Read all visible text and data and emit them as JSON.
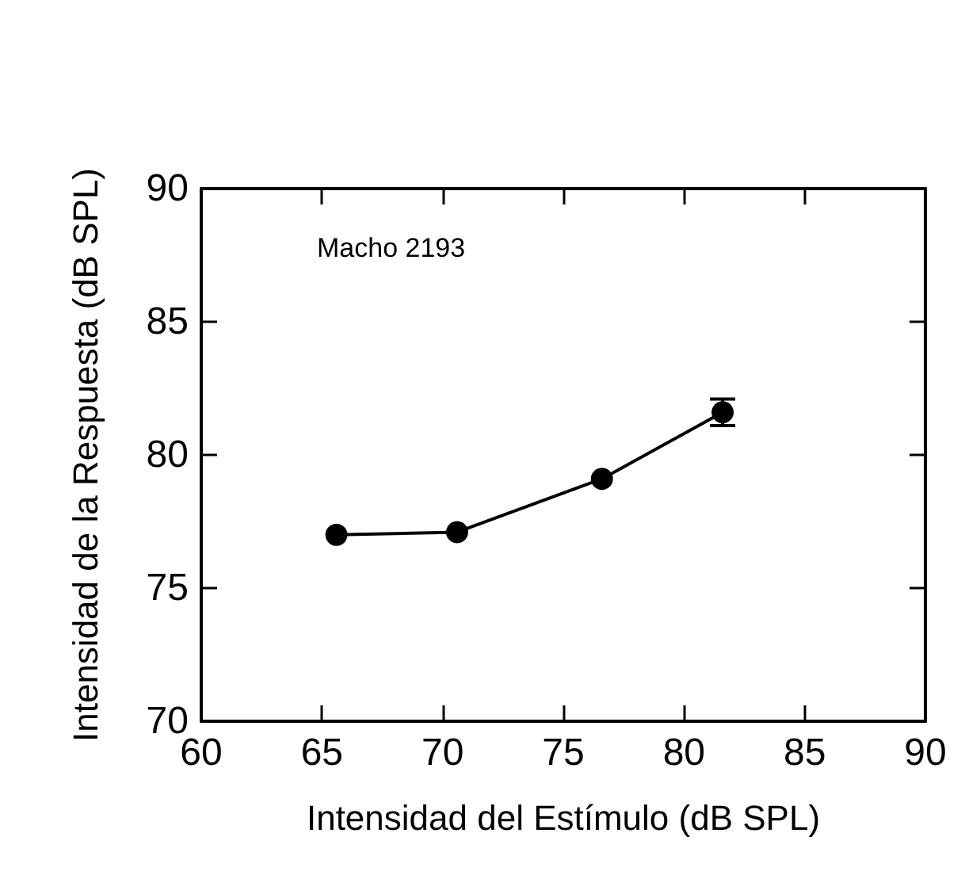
{
  "chart_data": {
    "type": "line",
    "xlabel": "Intensidad del Estímulo (dB SPL)",
    "ylabel": "Intensidad de la Respuesta (dB SPL)",
    "annotations": [
      "Macho 2193"
    ],
    "x": [
      65.6,
      70.6,
      76.6,
      81.6
    ],
    "series": [
      {
        "color": "#000000",
        "values": [
          77.0,
          77.1,
          79.1,
          81.6
        ],
        "errors": [
          null,
          null,
          null,
          0.5
        ]
      }
    ],
    "xlim": [
      60,
      90
    ],
    "xticks": [
      60,
      65,
      70,
      75,
      80,
      85,
      90
    ],
    "ylim": [
      70,
      90
    ],
    "yticks": [
      70,
      75,
      80,
      85,
      90
    ],
    "grid": false,
    "marker": "circle",
    "line_style": "solid"
  }
}
